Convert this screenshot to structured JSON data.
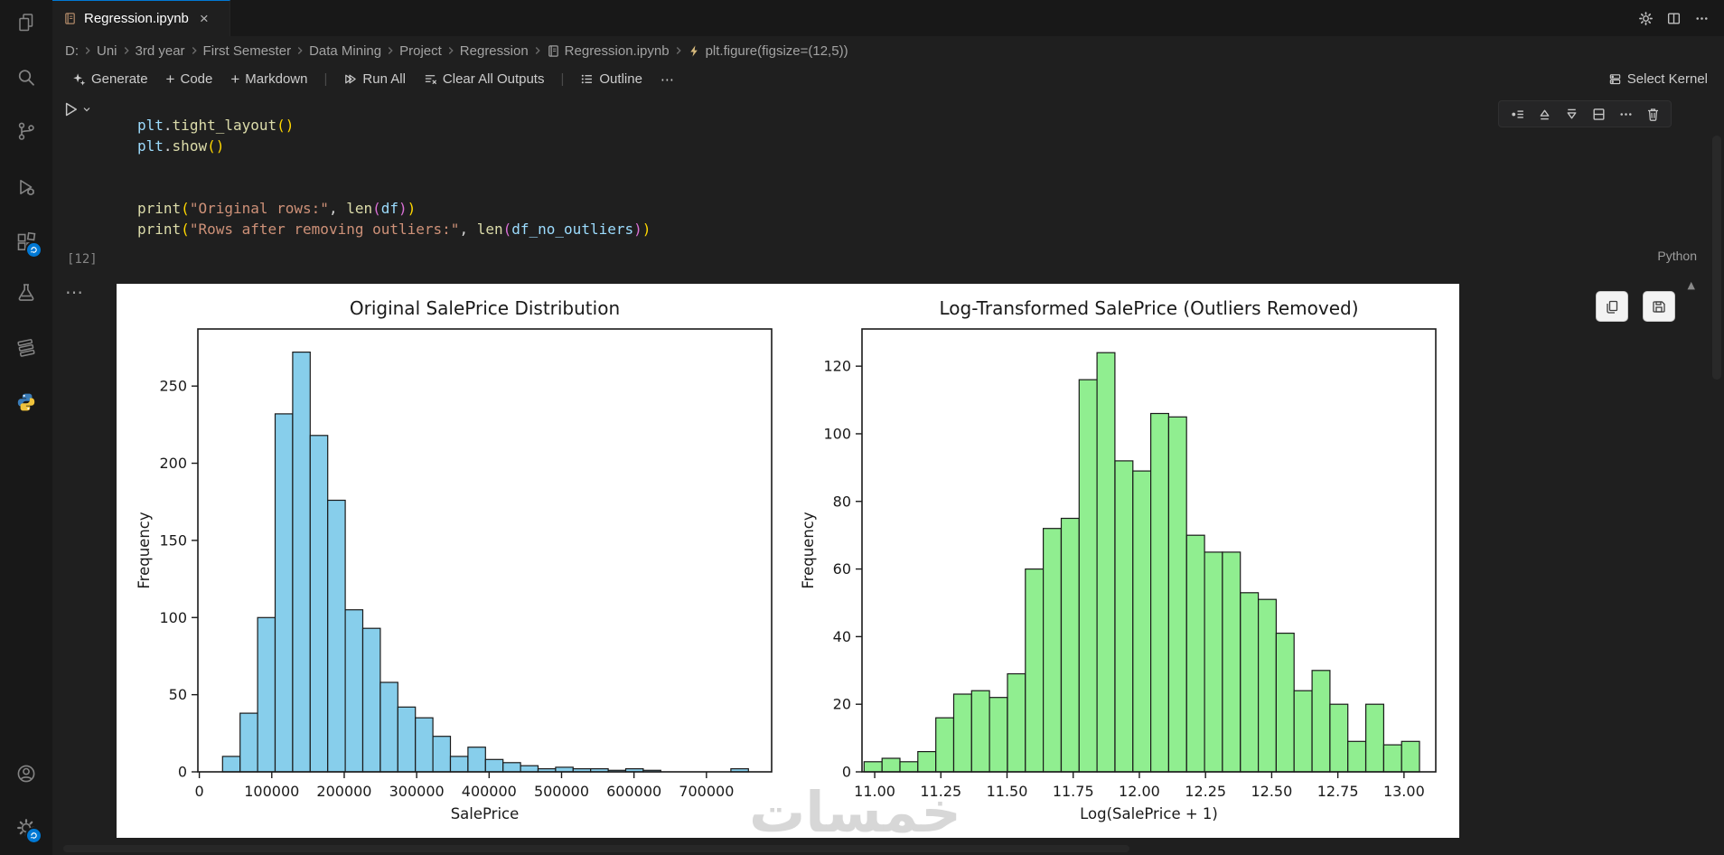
{
  "tab_bar": {
    "tab_title": "Regression.ipynb"
  },
  "breadcrumbs": {
    "items": [
      {
        "label": "D:"
      },
      {
        "label": "Uni"
      },
      {
        "label": "3rd year"
      },
      {
        "label": "First Semester"
      },
      {
        "label": "Data Mining"
      },
      {
        "label": "Project"
      },
      {
        "label": "Regression"
      },
      {
        "label": "Regression.ipynb",
        "icon": "notebook"
      },
      {
        "label": "plt.figure(figsize=(12,5))",
        "icon": "cell-symbol"
      }
    ]
  },
  "toolbar": {
    "generate": "Generate",
    "add_code": "Code",
    "add_markdown": "Markdown",
    "run_all": "Run All",
    "clear_all_outputs": "Clear All Outputs",
    "outline": "Outline",
    "select_kernel": "Select Kernel"
  },
  "cell": {
    "exec_count": "[12]",
    "language": "Python",
    "code_lines": [
      [
        {
          "t": "plt",
          "c": "v"
        },
        {
          "t": ".",
          "c": "p"
        },
        {
          "t": "tight_layout",
          "c": "f"
        },
        {
          "t": "(",
          "c": "b1"
        },
        {
          "t": ")",
          "c": "b1"
        }
      ],
      [
        {
          "t": "plt",
          "c": "v"
        },
        {
          "t": ".",
          "c": "p"
        },
        {
          "t": "show",
          "c": "f"
        },
        {
          "t": "(",
          "c": "b1"
        },
        {
          "t": ")",
          "c": "b1"
        }
      ],
      [],
      [],
      [
        {
          "t": "print",
          "c": "f"
        },
        {
          "t": "(",
          "c": "b1"
        },
        {
          "t": "\"Original rows:\"",
          "c": "s"
        },
        {
          "t": ", ",
          "c": "p"
        },
        {
          "t": "len",
          "c": "f"
        },
        {
          "t": "(",
          "c": "b2"
        },
        {
          "t": "df",
          "c": "v"
        },
        {
          "t": ")",
          "c": "b2"
        },
        {
          "t": ")",
          "c": "b1"
        }
      ],
      [
        {
          "t": "print",
          "c": "f"
        },
        {
          "t": "(",
          "c": "b1"
        },
        {
          "t": "\"Rows after removing outliers:\"",
          "c": "s"
        },
        {
          "t": ", ",
          "c": "p"
        },
        {
          "t": "len",
          "c": "f"
        },
        {
          "t": "(",
          "c": "b2"
        },
        {
          "t": "df_no_outliers",
          "c": "v"
        },
        {
          "t": ")",
          "c": "b2"
        },
        {
          "t": ")",
          "c": "b1"
        }
      ]
    ]
  },
  "chart_data": [
    {
      "type": "bar",
      "subtype": "histogram",
      "title": "Original SalePrice Distribution",
      "xlabel": "SalePrice",
      "ylabel": "Frequency",
      "bar_color": "#87CEEB",
      "edge_color": "#1a1a1a",
      "grid": false,
      "bin_start": 32000,
      "bin_width": 24200,
      "values": [
        10,
        38,
        100,
        232,
        272,
        218,
        176,
        105,
        93,
        58,
        42,
        35,
        23,
        10,
        16,
        8,
        6,
        4,
        2,
        3,
        2,
        2,
        1,
        2,
        1,
        0,
        0,
        0,
        0,
        2
      ],
      "xlim": [
        -2000,
        790000
      ],
      "ylim": [
        0,
        287
      ],
      "x_ticks": [
        {
          "v": 0,
          "label": "0"
        },
        {
          "v": 100000,
          "label": "100000"
        },
        {
          "v": 200000,
          "label": "200000"
        },
        {
          "v": 300000,
          "label": "300000"
        },
        {
          "v": 400000,
          "label": "400000"
        },
        {
          "v": 500000,
          "label": "500000"
        },
        {
          "v": 600000,
          "label": "600000"
        },
        {
          "v": 700000,
          "label": "700000"
        }
      ],
      "y_ticks": [
        {
          "v": 0,
          "label": "0"
        },
        {
          "v": 50,
          "label": "50"
        },
        {
          "v": 100,
          "label": "100"
        },
        {
          "v": 150,
          "label": "150"
        },
        {
          "v": 200,
          "label": "200"
        },
        {
          "v": 250,
          "label": "250"
        }
      ]
    },
    {
      "type": "bar",
      "subtype": "histogram",
      "title": "Log-Transformed SalePrice (Outliers Removed)",
      "xlabel": "Log(SalePrice + 1)",
      "ylabel": "Frequency",
      "bar_color": "#90EE90",
      "edge_color": "#1a1a1a",
      "grid": false,
      "bin_start": 10.96,
      "bin_width": 0.0677,
      "values": [
        3,
        4,
        3,
        6,
        16,
        23,
        24,
        22,
        29,
        60,
        72,
        75,
        116,
        124,
        92,
        89,
        106,
        105,
        70,
        65,
        65,
        53,
        51,
        41,
        24,
        30,
        20,
        9,
        20,
        8,
        9
      ],
      "xlim": [
        10.952,
        13.12
      ],
      "ylim": [
        0,
        131
      ],
      "x_ticks": [
        {
          "v": 11.0,
          "label": "11.00"
        },
        {
          "v": 11.25,
          "label": "11.25"
        },
        {
          "v": 11.5,
          "label": "11.50"
        },
        {
          "v": 11.75,
          "label": "11.75"
        },
        {
          "v": 12.0,
          "label": "12.00"
        },
        {
          "v": 12.25,
          "label": "12.25"
        },
        {
          "v": 12.5,
          "label": "12.50"
        },
        {
          "v": 12.75,
          "label": "12.75"
        },
        {
          "v": 13.0,
          "label": "13.00"
        }
      ],
      "y_ticks": [
        {
          "v": 0,
          "label": "0"
        },
        {
          "v": 20,
          "label": "20"
        },
        {
          "v": 40,
          "label": "40"
        },
        {
          "v": 60,
          "label": "60"
        },
        {
          "v": 80,
          "label": "80"
        },
        {
          "v": 100,
          "label": "100"
        },
        {
          "v": 120,
          "label": "120"
        }
      ]
    }
  ],
  "watermark": "خمسات"
}
